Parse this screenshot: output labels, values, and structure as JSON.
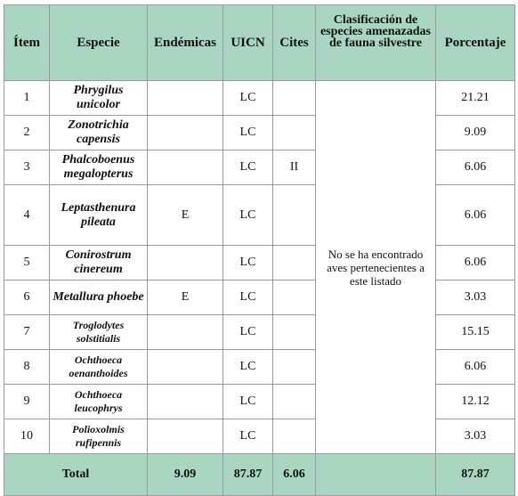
{
  "header": {
    "columns": [
      "Ítem",
      "Especie",
      "Endémicas",
      "UICN",
      "Cites",
      "Clasificación de especies amenazadas de fauna silvestre",
      "Porcentaje"
    ]
  },
  "rows": [
    {
      "item": "1",
      "species": "Phrygilus unicolor",
      "uicn": "LC",
      "percent": "21.21"
    },
    {
      "item": "2",
      "species": "Zonotrichia capensis",
      "uicn": "LC",
      "percent": "9.09"
    },
    {
      "item": "3",
      "species": "Phalcoboenus megalopterus",
      "uicn": "LC",
      "cites": "II",
      "percent": "6.06"
    },
    {
      "item": "4",
      "species": "Leptasthenura pileata",
      "endemic": "E",
      "uicn": "LC",
      "percent": "6.06"
    },
    {
      "item": "5",
      "species": "Conirostrum cinereum",
      "uicn": "LC",
      "percent": "6.06"
    },
    {
      "item": "6",
      "species": "Metallura phoebe",
      "endemic": "E",
      "uicn": "LC",
      "percent": "3.03"
    },
    {
      "item": "7",
      "species": "Troglodytes solstitialis",
      "uicn": "LC",
      "percent": "15.15"
    },
    {
      "item": "8",
      "species": "Ochthoeca oenanthoides",
      "uicn": "LC",
      "percent": "6.06"
    },
    {
      "item": "9",
      "species": "Ochthoeca leucophrys",
      "uicn": "LC",
      "percent": "12.12"
    },
    {
      "item": "10",
      "species": "Polioxolmis rufipennis",
      "uicn": "LC",
      "percent": "3.03"
    }
  ],
  "note": "No se ha encontrado aves pertenecientes a este listado",
  "total": {
    "label": "Total",
    "endemic": "9.09",
    "uicn": "87.87",
    "cites": "6.06",
    "percent": "87.87"
  }
}
